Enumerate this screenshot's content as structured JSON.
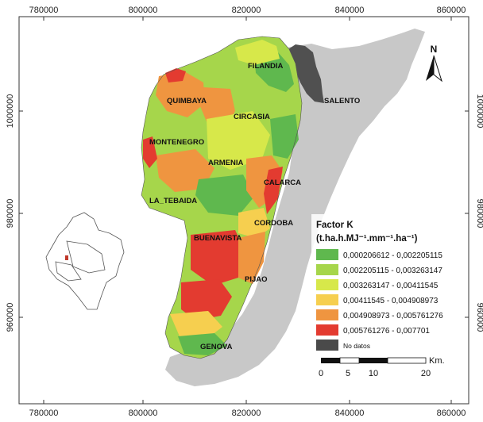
{
  "axes": {
    "x_ticks": [
      "780000",
      "800000",
      "820000",
      "840000",
      "860000"
    ],
    "y_ticks": [
      "1000000",
      "980000",
      "960000"
    ]
  },
  "north_arrow": {
    "label": "N",
    "icon": "north-arrow-icon"
  },
  "municipalities": [
    "FILANDIA",
    "SALENTO",
    "QUIMBAYA",
    "CIRCASIA",
    "MONTENEGRO",
    "ARMENIA",
    "CALARCA",
    "LA_TEBAIDA",
    "CORDOBA",
    "BUENAVISTA",
    "PIJAO",
    "GENOVA"
  ],
  "legend": {
    "title": "Factor K",
    "units": "(t.ha.h.MJ⁻¹.mm⁻¹.ha⁻¹)",
    "items": [
      {
        "label": "0,000206612 - 0,002205115",
        "color": "#5fb84e"
      },
      {
        "label": "0,002205115 - 0,003263147",
        "color": "#a6d64b"
      },
      {
        "label": "0,003263147 - 0,00411545",
        "color": "#d7e84a"
      },
      {
        "label": "0,00411545 - 0,004908973",
        "color": "#f6cf4f"
      },
      {
        "label": "0,004908973 - 0,005761276",
        "color": "#ef9540"
      },
      {
        "label": "0,005761276 - 0,007701",
        "color": "#e33b30"
      },
      {
        "label": "No datos",
        "color": "#4a4a4a"
      }
    ]
  },
  "scale_bar": {
    "unit": "Km.",
    "labels": [
      "0",
      "5",
      "10",
      "20"
    ]
  },
  "colors": {
    "background_region": "#c8c8c8",
    "frame_bg": "#ffffff"
  }
}
